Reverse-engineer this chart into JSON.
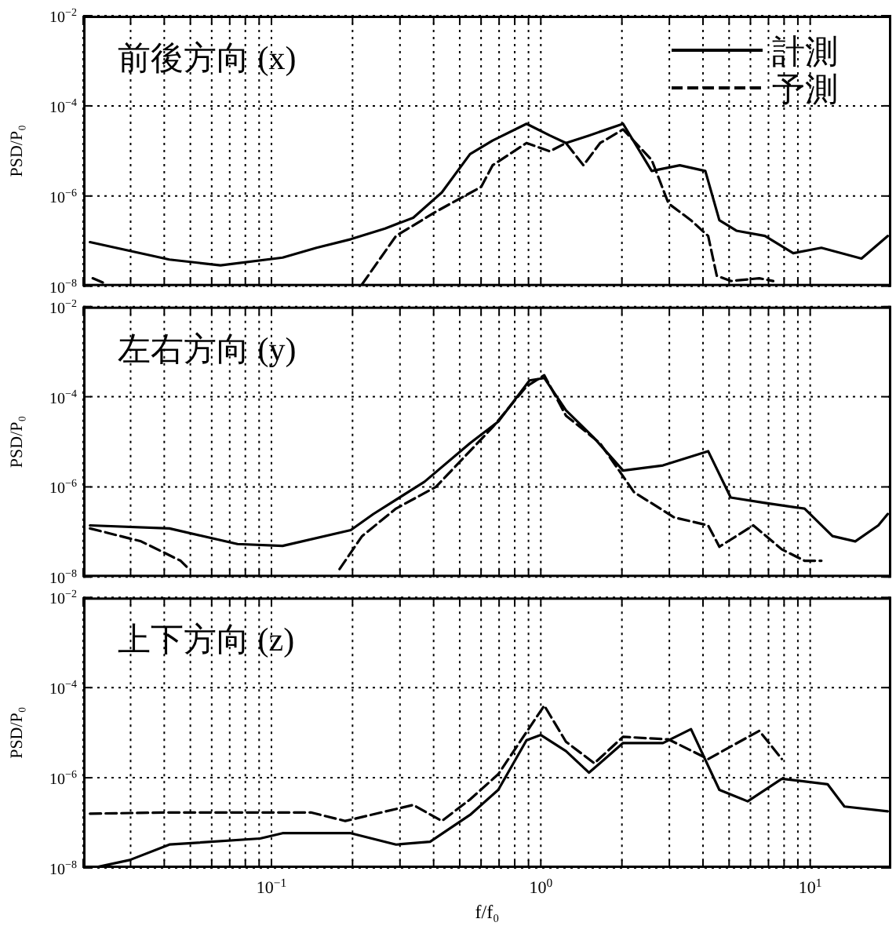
{
  "chart_data": [
    {
      "type": "line",
      "title": "前後方向 (x)",
      "ylabel": "PSD/P₀",
      "log": "xy",
      "grid": true,
      "legend": "top right",
      "tick_labels": "y",
      "xlim": [
        0.02,
        20
      ],
      "ylim": [
        1e-08,
        0.01
      ],
      "xticks": [
        {
          "value": 0.02,
          "label": null
        },
        {
          "value": 0.03,
          "label": null
        },
        {
          "value": 0.04,
          "label": null
        },
        {
          "value": 0.05,
          "label": null
        },
        {
          "value": 0.06,
          "label": null
        },
        {
          "value": 0.07,
          "label": null
        },
        {
          "value": 0.08,
          "label": null
        },
        {
          "value": 0.09,
          "label": null
        },
        {
          "value": 0.1,
          "label": null
        },
        {
          "value": 0.2,
          "label": null
        },
        {
          "value": 0.3,
          "label": null
        },
        {
          "value": 0.4,
          "label": null
        },
        {
          "value": 0.5,
          "label": null
        },
        {
          "value": 0.6,
          "label": null
        },
        {
          "value": 0.7,
          "label": null
        },
        {
          "value": 0.8,
          "label": null
        },
        {
          "value": 0.9,
          "label": null
        },
        {
          "value": 1,
          "label": null
        },
        {
          "value": 2,
          "label": null
        },
        {
          "value": 3,
          "label": null
        },
        {
          "value": 4,
          "label": null
        },
        {
          "value": 5,
          "label": null
        },
        {
          "value": 6,
          "label": null
        },
        {
          "value": 7,
          "label": null
        },
        {
          "value": 8,
          "label": null
        },
        {
          "value": 9,
          "label": null
        },
        {
          "value": 10,
          "label": null
        }
      ],
      "yticks": [
        {
          "value": 1e-08,
          "label": "10$^{−8}$"
        },
        {
          "value": 1e-06,
          "label": "10$^{−6}$"
        },
        {
          "value": 0.0001,
          "label": "10$^{−4}$"
        },
        {
          "value": 0.01,
          "label": "10$^{−2}$"
        }
      ],
      "series": [
        {
          "name": "計測",
          "color": "#000000",
          "line_style": "solid",
          "x": [
            0.0212,
            0.0418,
            0.0647,
            0.11,
            0.147,
            0.197,
            0.264,
            0.336,
            0.429,
            0.546,
            0.662,
            0.885,
            1.08,
            1.24,
            1.51,
            2.02,
            2.58,
            3.28,
            4.08,
            4.6,
            5.32,
            6.79,
            8.65,
            11.0,
            15.5,
            19.4
          ],
          "values": [
            9.5e-08,
            3.9e-08,
            2.9e-08,
            4.3e-08,
            7.1e-08,
            1.1e-07,
            1.9e-07,
            3.3e-07,
            1.2e-06,
            8.5e-06,
            1.7e-05,
            4e-05,
            2.2e-05,
            1.5e-05,
            2.2e-05,
            4e-05,
            3.6e-06,
            4.8e-06,
            3.6e-06,
            2.9e-07,
            1.7e-07,
            1.3e-07,
            5.4e-08,
            7.1e-08,
            4.1e-08,
            1.3e-07
          ]
        },
        {
          "color": "#000000",
          "line_style": "dashed",
          "x": [
            0.0217,
            0.0245
          ],
          "values": [
            1.5e-08,
            1.1e-08
          ]
        },
        {
          "name": "予測",
          "color": "#000000",
          "line_style": "dashed",
          "x": [
            0.217,
            0.29,
            0.408,
            0.601,
            0.662,
            0.885,
            1.08,
            1.24,
            1.44,
            1.66,
            2.02,
            2.58,
            2.98,
            3.61,
            4.18,
            4.5,
            5.07,
            6.47,
            7.29
          ],
          "values": [
            1.1e-08,
            1.3e-07,
            4.5e-07,
            1.6e-06,
            4.8e-06,
            1.5e-05,
            9.8e-06,
            1.5e-05,
            4.8e-06,
            1.5e-05,
            3e-05,
            6.3e-06,
            6.8e-07,
            2.9e-07,
            1.3e-07,
            1.7e-08,
            1.3e-08,
            1.5e-08,
            1.3e-08
          ]
        }
      ]
    },
    {
      "type": "line",
      "title": "左右方向 (y)",
      "ylabel": "PSD/P₀",
      "log": "xy",
      "grid": true,
      "tick_labels": "y",
      "xlim": [
        0.02,
        20
      ],
      "ylim": [
        1e-08,
        0.01
      ],
      "xticks": [
        {
          "value": 0.02,
          "label": null
        },
        {
          "value": 0.03,
          "label": null
        },
        {
          "value": 0.04,
          "label": null
        },
        {
          "value": 0.05,
          "label": null
        },
        {
          "value": 0.06,
          "label": null
        },
        {
          "value": 0.07,
          "label": null
        },
        {
          "value": 0.08,
          "label": null
        },
        {
          "value": 0.09,
          "label": null
        },
        {
          "value": 0.1,
          "label": null
        },
        {
          "value": 0.2,
          "label": null
        },
        {
          "value": 0.3,
          "label": null
        },
        {
          "value": 0.4,
          "label": null
        },
        {
          "value": 0.5,
          "label": null
        },
        {
          "value": 0.6,
          "label": null
        },
        {
          "value": 0.7,
          "label": null
        },
        {
          "value": 0.8,
          "label": null
        },
        {
          "value": 0.9,
          "label": null
        },
        {
          "value": 1,
          "label": null
        },
        {
          "value": 2,
          "label": null
        },
        {
          "value": 3,
          "label": null
        },
        {
          "value": 4,
          "label": null
        },
        {
          "value": 5,
          "label": null
        },
        {
          "value": 6,
          "label": null
        },
        {
          "value": 7,
          "label": null
        },
        {
          "value": 8,
          "label": null
        },
        {
          "value": 9,
          "label": null
        },
        {
          "value": 10,
          "label": null
        }
      ],
      "yticks": [
        {
          "value": 1e-08,
          "label": "10$^{−8}$"
        },
        {
          "value": 1e-06,
          "label": "10$^{−6}$"
        },
        {
          "value": 0.0001,
          "label": "10$^{−4}$"
        },
        {
          "value": 0.01,
          "label": "10$^{−2}$"
        }
      ],
      "series": [
        {
          "color": "#000000",
          "line_style": "solid",
          "x": [
            0.0212,
            0.0418,
            0.0748,
            0.11,
            0.197,
            0.239,
            0.37,
            0.546,
            0.695,
            0.908,
            1.03,
            1.24,
            1.58,
            2.02,
            2.84,
            4.18,
            5.07,
            6.79,
            9.53,
            12.1,
            14.7,
            17.9,
            19.4
          ],
          "values": [
            1.4e-07,
            1.2e-07,
            5.4e-08,
            4.9e-08,
            1.1e-07,
            2.5e-07,
            1.3e-06,
            9.3e-06,
            2.8e-05,
            0.00023,
            0.00026,
            5e-05,
            1.2e-05,
            2.3e-06,
            3e-06,
            6.2e-06,
            5.8e-07,
            4.4e-07,
            3.3e-07,
            8.1e-08,
            6.2e-08,
            1.4e-07,
            2.5e-07
          ]
        },
        {
          "color": "#000000",
          "line_style": "dashed",
          "x": [
            0.0212,
            0.0328,
            0.046,
            0.0495
          ],
          "values": [
            1.2e-07,
            6.2e-08,
            2.3e-08,
            1.5e-08
          ]
        },
        {
          "color": "#000000",
          "line_style": "dashed",
          "x": [
            0.179,
            0.217,
            0.29,
            0.408,
            0.662,
            0.885,
            1.03,
            1.24,
            1.66,
            2.22,
            3.13,
            4.18,
            4.6,
            6.15,
            7.85,
            9.53,
            11.0
          ],
          "values": [
            1.5e-08,
            8.1e-08,
            3.3e-07,
            1e-06,
            2.1e-05,
            0.00017,
            0.0003,
            3.8e-05,
            9.3e-06,
            7.6e-07,
            2.1e-07,
            1.4e-07,
            4.7e-08,
            1.4e-07,
            4.1e-08,
            2.3e-08,
            2.3e-08
          ]
        }
      ]
    },
    {
      "type": "line",
      "title": "上下方向 (z)",
      "ylabel": "PSD/P₀",
      "xlabel": "f/f₀",
      "log": "xy",
      "grid": true,
      "xlim": [
        0.02,
        20
      ],
      "ylim": [
        1e-08,
        0.01
      ],
      "xticks": [
        {
          "value": 0.02,
          "label": null
        },
        {
          "value": 0.03,
          "label": null
        },
        {
          "value": 0.04,
          "label": null
        },
        {
          "value": 0.05,
          "label": null
        },
        {
          "value": 0.06,
          "label": null
        },
        {
          "value": 0.07,
          "label": null
        },
        {
          "value": 0.08,
          "label": null
        },
        {
          "value": 0.09,
          "label": null
        },
        {
          "value": 0.1,
          "label": "10$^{−1}$"
        },
        {
          "value": 0.2,
          "label": null
        },
        {
          "value": 0.3,
          "label": null
        },
        {
          "value": 0.4,
          "label": null
        },
        {
          "value": 0.5,
          "label": null
        },
        {
          "value": 0.6,
          "label": null
        },
        {
          "value": 0.7,
          "label": null
        },
        {
          "value": 0.8,
          "label": null
        },
        {
          "value": 0.9,
          "label": null
        },
        {
          "value": 1,
          "label": "10$^{0}$"
        },
        {
          "value": 2,
          "label": null
        },
        {
          "value": 3,
          "label": null
        },
        {
          "value": 4,
          "label": null
        },
        {
          "value": 5,
          "label": null
        },
        {
          "value": 6,
          "label": null
        },
        {
          "value": 7,
          "label": null
        },
        {
          "value": 8,
          "label": null
        },
        {
          "value": 9,
          "label": null
        },
        {
          "value": 10,
          "label": "10$^{1}$"
        }
      ],
      "yticks": [
        {
          "value": 1e-08,
          "label": "10$^{−8}$"
        },
        {
          "value": 1e-06,
          "label": "10$^{−6}$"
        },
        {
          "value": 0.0001,
          "label": "10$^{−4}$"
        },
        {
          "value": 0.01,
          "label": "10$^{−2}$"
        }
      ],
      "series": [
        {
          "color": "#000000",
          "line_style": "solid",
          "x": [
            0.0217,
            0.0298,
            0.0418,
            0.0908,
            0.11,
            0.197,
            0.29,
            0.388,
            0.546,
            0.695,
            0.885,
            1.0,
            1.24,
            1.51,
            2.02,
            2.84,
            3.61,
            4.6,
            5.86,
            7.85,
            11.6,
            13.4,
            19.4
          ],
          "values": [
            1e-08,
            1.5e-08,
            3.3e-08,
            4.5e-08,
            5.9e-08,
            5.9e-08,
            3.3e-08,
            3.8e-08,
            1.5e-07,
            5.4e-07,
            6.8e-06,
            8.9e-06,
            3.9e-06,
            1.3e-06,
            5.9e-06,
            5.9e-06,
            1.2e-05,
            5.4e-07,
            3e-07,
            9.5e-07,
            7.2e-07,
            2.3e-07,
            1.8e-07
          ]
        },
        {
          "color": "#000000",
          "line_style": "dashed",
          "x": [
            0.0212,
            0.0418,
            0.0908,
            0.14,
            0.188,
            0.336,
            0.429,
            0.546,
            0.695,
            1.03,
            1.24,
            1.58,
            2.02,
            2.98,
            4.18,
            6.47,
            7.85
          ],
          "values": [
            1.6e-07,
            1.7e-07,
            1.7e-07,
            1.7e-07,
            1.1e-07,
            2.5e-07,
            1.1e-07,
            3.3e-07,
            1.2e-06,
            4e-05,
            6.3e-06,
            2.1e-06,
            8.1e-06,
            7.1e-06,
            2.6e-06,
            1.1e-05,
            2.6e-06
          ]
        }
      ]
    }
  ]
}
